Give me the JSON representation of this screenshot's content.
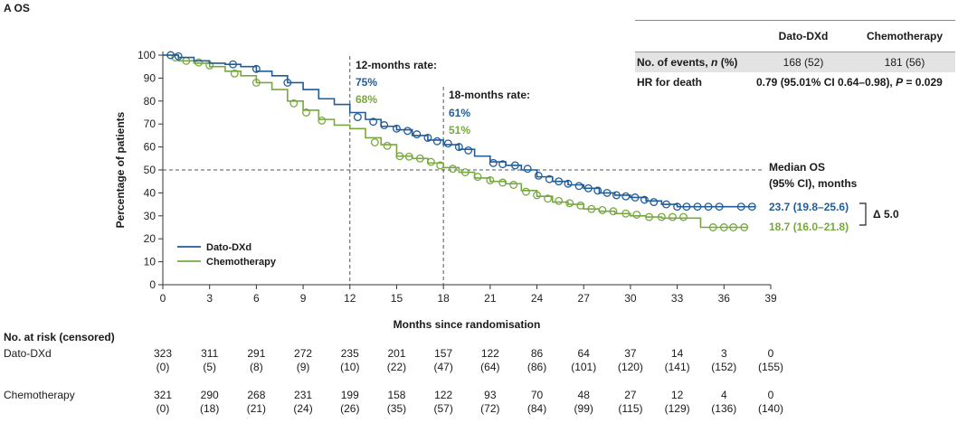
{
  "panel_label": "A   OS",
  "chart_data": {
    "type": "line",
    "subtype": "kaplan-meier",
    "xlabel": "Months since randomisation",
    "ylabel": "Percentage of patients",
    "xlim": [
      0,
      39
    ],
    "ylim": [
      0,
      100
    ],
    "x_ticks": [
      0,
      3,
      6,
      9,
      12,
      15,
      18,
      21,
      24,
      27,
      30,
      33,
      36,
      39
    ],
    "y_ticks": [
      0,
      10,
      20,
      30,
      40,
      50,
      60,
      70,
      80,
      90,
      100
    ],
    "grid": false,
    "legend_position": "bottom-left",
    "series": [
      {
        "name": "Dato-DXd",
        "color": "#1f5c99",
        "points": [
          [
            0,
            100
          ],
          [
            1,
            99
          ],
          [
            2,
            97.5
          ],
          [
            3,
            96.5
          ],
          [
            4,
            96
          ],
          [
            5,
            95
          ],
          [
            6,
            93
          ],
          [
            7,
            91
          ],
          [
            8,
            88
          ],
          [
            9,
            85
          ],
          [
            10,
            81
          ],
          [
            11,
            78.5
          ],
          [
            12,
            75
          ],
          [
            13,
            72
          ],
          [
            14,
            69
          ],
          [
            15,
            67.5
          ],
          [
            16,
            65
          ],
          [
            17,
            63
          ],
          [
            18,
            61
          ],
          [
            19,
            59
          ],
          [
            20,
            56
          ],
          [
            21,
            53.5
          ],
          [
            22,
            52
          ],
          [
            23,
            50
          ],
          [
            24,
            47
          ],
          [
            25,
            45
          ],
          [
            26,
            43.5
          ],
          [
            27,
            42
          ],
          [
            28,
            40
          ],
          [
            29,
            39
          ],
          [
            30,
            38
          ],
          [
            31,
            36.5
          ],
          [
            32,
            35
          ],
          [
            33,
            34
          ],
          [
            34,
            34
          ],
          [
            35,
            34
          ],
          [
            36,
            34
          ],
          [
            37,
            34
          ],
          [
            38,
            34
          ]
        ],
        "censor_marks": [
          [
            0.5,
            100
          ],
          [
            1,
            99.5
          ],
          [
            4.5,
            96
          ],
          [
            6,
            94
          ],
          [
            8,
            88
          ],
          [
            12.5,
            73
          ],
          [
            13.5,
            71
          ],
          [
            14.2,
            69.5
          ],
          [
            15,
            68
          ],
          [
            15.7,
            67
          ],
          [
            16.3,
            65.5
          ],
          [
            17,
            64
          ],
          [
            17.6,
            62.5
          ],
          [
            18.3,
            61.5
          ],
          [
            19,
            60
          ],
          [
            19.6,
            58.5
          ],
          [
            21.2,
            53
          ],
          [
            21.8,
            52.5
          ],
          [
            22.6,
            52
          ],
          [
            23.4,
            50.5
          ],
          [
            24.1,
            47.5
          ],
          [
            24.8,
            46
          ],
          [
            25.4,
            45
          ],
          [
            26,
            44
          ],
          [
            26.7,
            43
          ],
          [
            27.3,
            42
          ],
          [
            27.9,
            41
          ],
          [
            28.5,
            40
          ],
          [
            29.1,
            39
          ],
          [
            29.7,
            38.5
          ],
          [
            30.3,
            38
          ],
          [
            30.9,
            37
          ],
          [
            31.5,
            36
          ],
          [
            32.3,
            35
          ],
          [
            33,
            34
          ],
          [
            33.6,
            34
          ],
          [
            34.3,
            34
          ],
          [
            35,
            34
          ],
          [
            35.7,
            34
          ],
          [
            37.1,
            34
          ],
          [
            37.8,
            34
          ]
        ],
        "rate_12_months": "75%",
        "rate_18_months": "61%",
        "median_os": "23.7 (19.8–25.6)"
      },
      {
        "name": "Chemotherapy",
        "color": "#77a83f",
        "points": [
          [
            0,
            100
          ],
          [
            1,
            97.5
          ],
          [
            2,
            96.5
          ],
          [
            3,
            95
          ],
          [
            4,
            93
          ],
          [
            5,
            91
          ],
          [
            6,
            88
          ],
          [
            7,
            85
          ],
          [
            8,
            80
          ],
          [
            9,
            76
          ],
          [
            10,
            72
          ],
          [
            11,
            69.5
          ],
          [
            12,
            68
          ],
          [
            13,
            64
          ],
          [
            14,
            61
          ],
          [
            15,
            56
          ],
          [
            16,
            55
          ],
          [
            17,
            53
          ],
          [
            18,
            51
          ],
          [
            19,
            49
          ],
          [
            20,
            46.5
          ],
          [
            21,
            45
          ],
          [
            22,
            44
          ],
          [
            23,
            41
          ],
          [
            24,
            38.5
          ],
          [
            25,
            36
          ],
          [
            26,
            35
          ],
          [
            27,
            33
          ],
          [
            28,
            32
          ],
          [
            29,
            31
          ],
          [
            30,
            30
          ],
          [
            31,
            29.5
          ],
          [
            32,
            29
          ],
          [
            33,
            29
          ],
          [
            34,
            29
          ],
          [
            34.5,
            25
          ],
          [
            36,
            25
          ],
          [
            37.5,
            25
          ]
        ],
        "censor_marks": [
          [
            0.8,
            99
          ],
          [
            1.5,
            97.5
          ],
          [
            2.3,
            96.8
          ],
          [
            3,
            95.5
          ],
          [
            4.6,
            92
          ],
          [
            6,
            88
          ],
          [
            8.4,
            79
          ],
          [
            9.2,
            75
          ],
          [
            10.2,
            71.5
          ],
          [
            13.6,
            62
          ],
          [
            14.4,
            60.5
          ],
          [
            15.2,
            56
          ],
          [
            15.8,
            55.8
          ],
          [
            16.5,
            55
          ],
          [
            17.2,
            53.5
          ],
          [
            17.8,
            52
          ],
          [
            18.6,
            50.5
          ],
          [
            19.4,
            49
          ],
          [
            20.2,
            47
          ],
          [
            21,
            45.5
          ],
          [
            21.8,
            44.5
          ],
          [
            22.5,
            43.5
          ],
          [
            23.3,
            40.5
          ],
          [
            24,
            39
          ],
          [
            24.7,
            37.5
          ],
          [
            25.4,
            36.5
          ],
          [
            26.1,
            35.5
          ],
          [
            26.8,
            34.5
          ],
          [
            27.5,
            33
          ],
          [
            28.2,
            32.5
          ],
          [
            28.9,
            32
          ],
          [
            29.7,
            31
          ],
          [
            30.4,
            30.5
          ],
          [
            31.2,
            29.5
          ],
          [
            32,
            29.5
          ],
          [
            32.7,
            29.5
          ],
          [
            33.4,
            29.5
          ],
          [
            35.3,
            25
          ],
          [
            36,
            25
          ],
          [
            36.6,
            25
          ],
          [
            37.3,
            25
          ]
        ],
        "rate_12_months": "68%",
        "rate_18_months": "51%",
        "median_os": "18.7 (16.0–21.8)"
      }
    ],
    "annotations": {
      "rate12_title": "12-months rate:",
      "rate18_title": "18-months rate:",
      "median_title_line1": "Median OS",
      "median_title_line2": "(95% CI), months",
      "delta": "Δ 5.0"
    }
  },
  "stats_table": {
    "col_dato": "Dato-DXd",
    "col_chemo": "Chemotherapy",
    "events_label_prefix": "No. of events, ",
    "events_label_n": "n",
    "events_label_suffix": " (%)",
    "events_dato": "168 (52)",
    "events_chemo": "181 (56)",
    "hr_label": "HR for death",
    "hr_value_prefix": "0.79 (95.01% CI 0.64–0.98), ",
    "hr_value_p": "P",
    "hr_value_suffix": " = 0.029"
  },
  "risk_table": {
    "title": "No. at risk (censored)",
    "rows": [
      {
        "label": "Dato-DXd",
        "at_risk": [
          "323",
          "311",
          "291",
          "272",
          "235",
          "201",
          "157",
          "122",
          "86",
          "64",
          "37",
          "14",
          "3",
          "0"
        ],
        "censored": [
          "(0)",
          "(5)",
          "(8)",
          "(9)",
          "(10)",
          "(22)",
          "(47)",
          "(64)",
          "(86)",
          "(101)",
          "(120)",
          "(141)",
          "(152)",
          "(155)"
        ]
      },
      {
        "label": "Chemotherapy",
        "at_risk": [
          "321",
          "290",
          "268",
          "231",
          "199",
          "158",
          "122",
          "93",
          "70",
          "48",
          "27",
          "12",
          "4",
          "0"
        ],
        "censored": [
          "(0)",
          "(18)",
          "(21)",
          "(24)",
          "(26)",
          "(35)",
          "(57)",
          "(72)",
          "(84)",
          "(99)",
          "(115)",
          "(129)",
          "(136)",
          "(140)"
        ]
      }
    ]
  }
}
